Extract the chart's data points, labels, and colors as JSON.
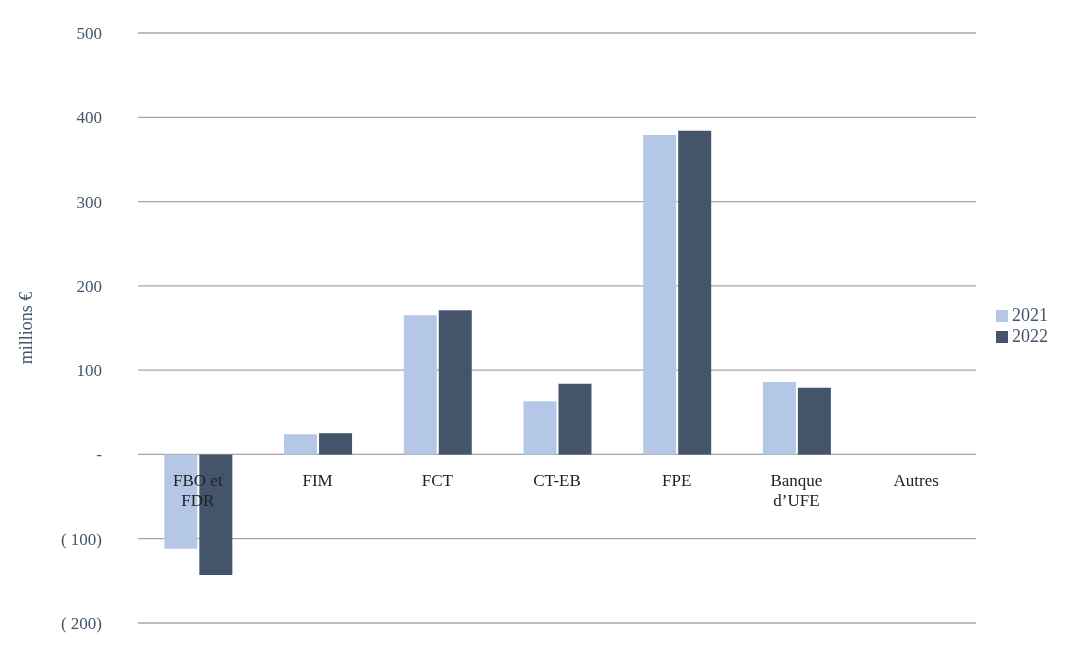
{
  "chart_data": {
    "type": "bar",
    "ylabel": "millions €",
    "categories": [
      "FBO et FDR",
      "FIM",
      "FCT",
      "CT-EB",
      "FPE",
      "Banque d’UFE",
      "Autres"
    ],
    "series": [
      {
        "name": "2021",
        "color": "#b4c7e7",
        "values": [
          -112,
          24,
          165,
          63,
          379,
          86,
          null
        ]
      },
      {
        "name": "2022",
        "color": "#44546a",
        "values": [
          -143,
          25,
          171,
          84,
          384,
          79,
          null
        ]
      }
    ],
    "ylim": [
      -200,
      500
    ],
    "yticks": [
      {
        "value": -200,
        "label": "( 200)"
      },
      {
        "value": -100,
        "label": "( 100)"
      },
      {
        "value": 0,
        "label": "-"
      },
      100,
      200,
      300,
      400,
      500
    ],
    "grid": "y",
    "legend": "right"
  }
}
